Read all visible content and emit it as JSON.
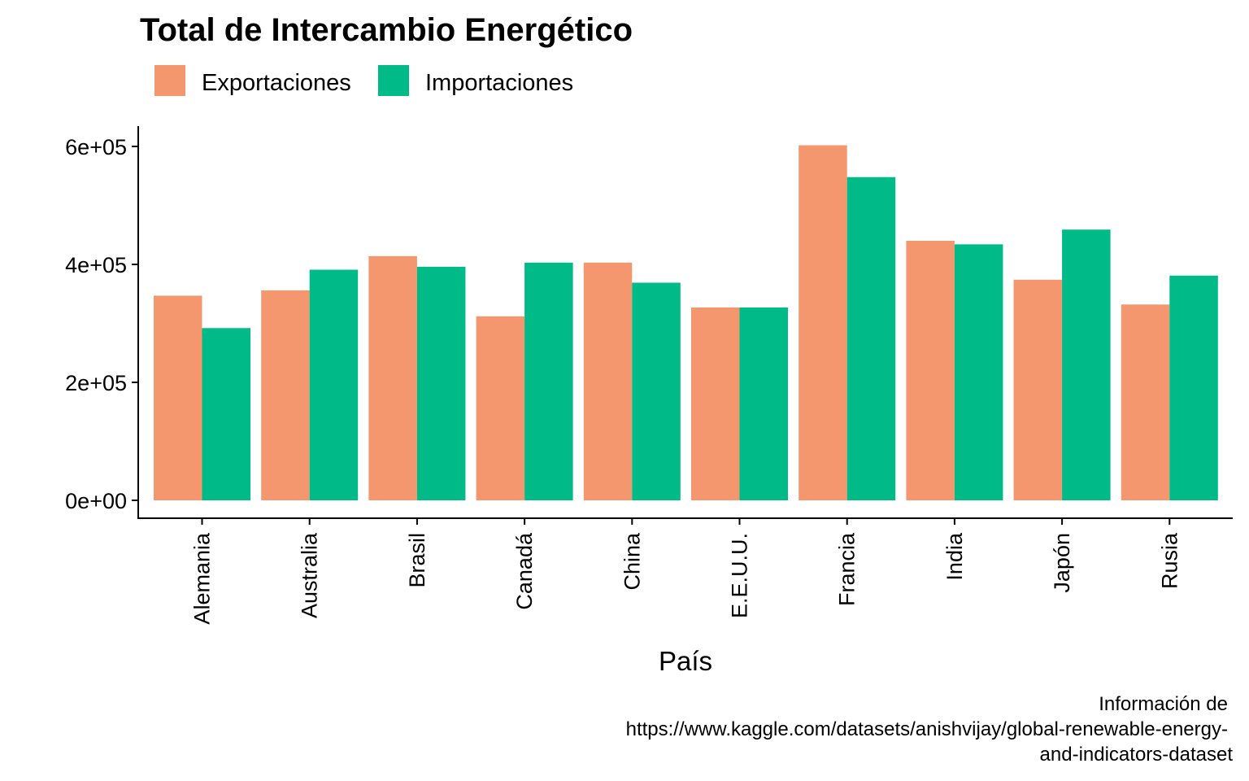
{
  "chart_data": {
    "type": "bar",
    "title": "Total de Intercambio Energético",
    "xlabel": "País",
    "ylabel": "",
    "categories": [
      "Alemania",
      "Australia",
      "Brasil",
      "Canadá",
      "China",
      "E.E.U.U.",
      "Francia",
      "India",
      "Japón",
      "Rusia"
    ],
    "series": [
      {
        "name": "Exportaciones",
        "color": "#F4976F",
        "values": [
          347000,
          356000,
          414000,
          312000,
          403000,
          327000,
          602000,
          440000,
          374000,
          332000
        ]
      },
      {
        "name": "Importaciones",
        "color": "#00BA87",
        "values": [
          292000,
          391000,
          396000,
          403000,
          369000,
          327000,
          548000,
          434000,
          459000,
          381000
        ]
      }
    ],
    "ylim": [
      0,
      630000
    ],
    "yticks": [
      0,
      200000,
      400000,
      600000
    ],
    "ytick_labels": [
      "0e+00",
      "2e+05",
      "4e+05",
      "6e+05"
    ],
    "legend_position": "top-left",
    "grid": false,
    "caption": [
      "Información de",
      "https://www.kaggle.com/datasets/anishvijay/global-renewable-energy-",
      "and-indicators-dataset"
    ]
  }
}
